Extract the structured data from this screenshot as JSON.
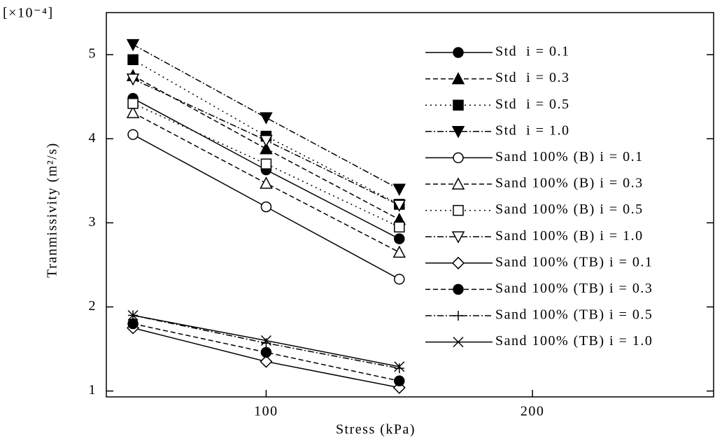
{
  "chart_data": {
    "type": "line",
    "multiplier_label": "[×10⁻⁴]",
    "x_label": "Stress (kPa)",
    "y_label": "Tranmissivity (m²/s)",
    "x": [
      50,
      100,
      150
    ],
    "xlim": [
      40,
      268
    ],
    "ylim": [
      0.93,
      5.5
    ],
    "xticks": [
      100,
      200
    ],
    "yticks": [
      1,
      2,
      3,
      4,
      5
    ],
    "legend": "right",
    "series": [
      {
        "name": "Std  i = 0.1",
        "color": "#000000",
        "marker": "circle-filled",
        "line_style": "solid",
        "values": [
          4.48,
          3.63,
          2.81
        ]
      },
      {
        "name": "Std  i = 0.3",
        "color": "#000000",
        "marker": "triangle-filled",
        "line_style": "dashed",
        "values": [
          4.75,
          3.88,
          3.04
        ]
      },
      {
        "name": "Std  i = 0.5",
        "color": "#000000",
        "marker": "square-filled",
        "line_style": "dotted",
        "values": [
          4.94,
          4.03,
          3.22
        ]
      },
      {
        "name": "Std  i = 1.0",
        "color": "#000000",
        "marker": "triangle-down-filled",
        "line_style": "dashdot",
        "values": [
          5.12,
          4.25,
          3.4
        ]
      },
      {
        "name": "Sand 100% (B) i = 0.1",
        "color": "#000000",
        "marker": "circle-open",
        "line_style": "solid",
        "values": [
          4.05,
          3.19,
          2.33
        ]
      },
      {
        "name": "Sand 100% (B) i = 0.3",
        "color": "#000000",
        "marker": "triangle-open",
        "line_style": "dashed",
        "values": [
          4.31,
          3.47,
          2.65
        ]
      },
      {
        "name": "Sand 100% (B) i = 0.5",
        "color": "#000000",
        "marker": "square-open",
        "line_style": "dotted",
        "values": [
          4.42,
          3.7,
          2.95
        ]
      },
      {
        "name": "Sand 100% (B) i = 1.0",
        "color": "#000000",
        "marker": "triangle-down-open",
        "line_style": "dashdot",
        "values": [
          4.71,
          3.98,
          3.21
        ]
      },
      {
        "name": "Sand 100% (TB) i = 0.1",
        "color": "#000000",
        "marker": "diamond-open",
        "line_style": "solid",
        "values": [
          1.75,
          1.35,
          1.04
        ]
      },
      {
        "name": "Sand 100% (TB) i = 0.3",
        "color": "#000000",
        "marker": "circle-filled",
        "line_style": "dashed",
        "values": [
          1.8,
          1.46,
          1.12
        ]
      },
      {
        "name": "Sand 100% (TB) i = 0.5",
        "color": "#000000",
        "marker": "plus",
        "line_style": "dashdot",
        "values": [
          1.9,
          1.57,
          1.27
        ]
      },
      {
        "name": "Sand 100% (TB) i = 1.0",
        "color": "#000000",
        "marker": "cross",
        "line_style": "solid",
        "values": [
          1.9,
          1.6,
          1.29
        ]
      }
    ]
  }
}
